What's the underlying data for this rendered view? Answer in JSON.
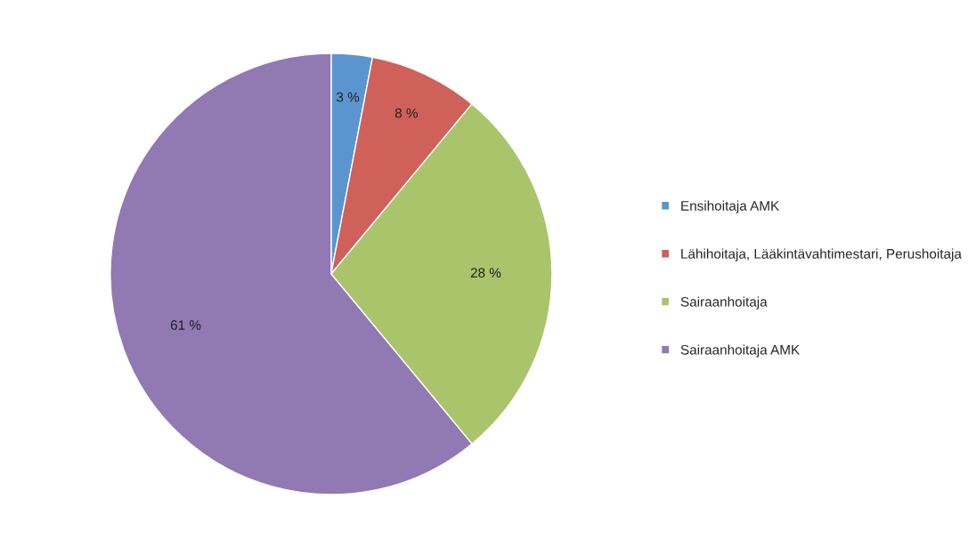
{
  "chart_data": {
    "type": "pie",
    "categories": [
      "Ensihoitaja AMK",
      "Lähihoitaja, Lääkintävahtimestari, Perushoitaja",
      "Sairaanhoitaja",
      "Sairaanhoitaja AMK"
    ],
    "values": [
      3,
      8,
      28,
      61
    ],
    "colors": [
      "#5b95d0",
      "#d0605a",
      "#aac46b",
      "#9179b3"
    ],
    "value_labels": [
      "3 %",
      "8 %",
      "28 %",
      "61 %"
    ],
    "legend": "right"
  }
}
